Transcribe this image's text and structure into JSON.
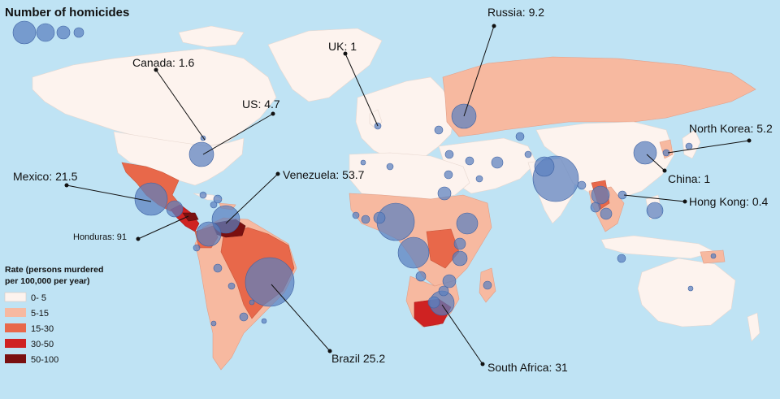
{
  "legend_size": {
    "title": "Number of homicides"
  },
  "legend_rate": {
    "title_line1": "Rate (persons murdered",
    "title_line2": "per 100,000 per year)",
    "items": [
      {
        "label": "0- 5",
        "color": "#fdf3ee"
      },
      {
        "label": "5-15",
        "color": "#f7b9a0"
      },
      {
        "label": "15-30",
        "color": "#e8684a"
      },
      {
        "label": "30-50",
        "color": "#cf2222"
      },
      {
        "label": "50-100",
        "color": "#7a1010"
      }
    ]
  },
  "colors": {
    "ocean": "#bfe3f4",
    "bubble": "#5a7fbf"
  },
  "callouts": [
    {
      "country": "Canada",
      "text": "Canada: 1.6",
      "rate": 1.6
    },
    {
      "country": "US",
      "text": "US: 4.7",
      "rate": 4.7
    },
    {
      "country": "UK",
      "text": "UK: 1",
      "rate": 1
    },
    {
      "country": "Russia",
      "text": "Russia: 9.2",
      "rate": 9.2
    },
    {
      "country": "North Korea",
      "text": "North Korea: 5.2",
      "rate": 5.2
    },
    {
      "country": "China",
      "text": "China: 1",
      "rate": 1
    },
    {
      "country": "Hong Kong",
      "text": "Hong Kong: 0.4",
      "rate": 0.4
    },
    {
      "country": "Mexico",
      "text": "Mexico: 21.5",
      "rate": 21.5
    },
    {
      "country": "Venezuela",
      "text": "Venezuela: 53.7",
      "rate": 53.7
    },
    {
      "country": "Honduras",
      "text": "Honduras: 91",
      "rate": 91
    },
    {
      "country": "Brazil",
      "text": "Brazil 25.2",
      "rate": 25.2
    },
    {
      "country": "South Africa",
      "text": "South Africa: 31",
      "rate": 31
    }
  ]
}
